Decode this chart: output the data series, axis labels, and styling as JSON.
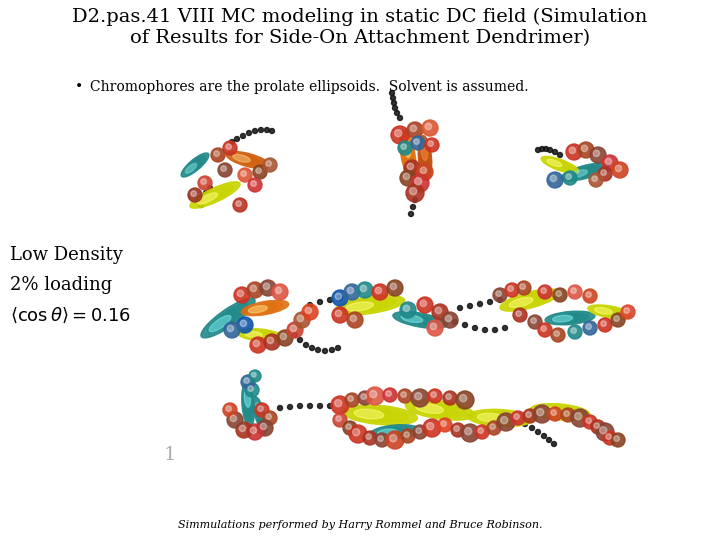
{
  "title_line1": "D2.pas.41 VIII MC modeling in static DC field (Simulation",
  "title_line2": "of Results for Side-On Attachment Dendrimer)",
  "bullet_text": "Chromophores are the prolate ellipsoids.  Solvent is assumed.",
  "label_density": "Low Density",
  "label_loading": "2% loading",
  "label_equation": "$\\langle\\cos\\theta\\rangle = 0.16$",
  "footer": "Simmulations performed by Harry Rommel and Bruce Robinson.",
  "bg_color": "#ffffff",
  "title_fontsize": 14,
  "bullet_fontsize": 10,
  "label_fontsize": 13,
  "footer_fontsize": 8
}
